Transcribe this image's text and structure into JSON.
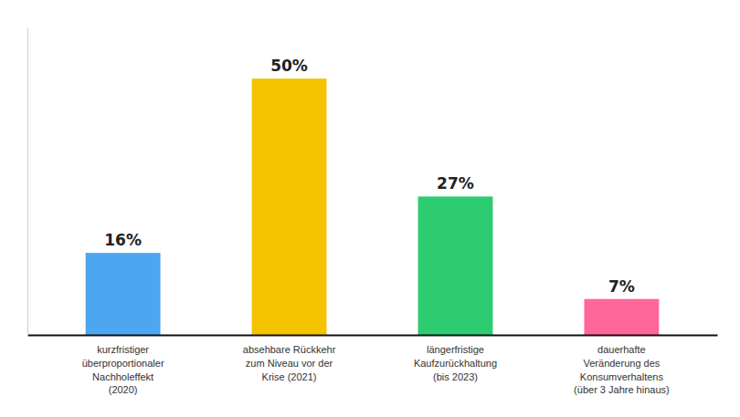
{
  "chart_data": {
    "type": "bar",
    "categories": [
      "kurzfristiger\nüberproportionaler\nNachholeffekt\n(2020)",
      "absehbare Rückkehr\nzum Niveau vor der\nKrise (2021)",
      "längerfristige\nKaufzurückhaltung\n(bis 2023)",
      "dauerhafte\nVeränderung des\nKonsumverhaltens\n(über 3 Jahre hinaus)"
    ],
    "values": [
      16,
      50,
      27,
      7
    ],
    "value_labels": [
      "16%",
      "50%",
      "27%",
      "7%"
    ],
    "colors": [
      "#4da6f0",
      "#f5c200",
      "#2ecc71",
      "#ff6699"
    ],
    "ylim": [
      0,
      60
    ],
    "data_labels": true,
    "tick_labels": "x",
    "grid": false
  }
}
